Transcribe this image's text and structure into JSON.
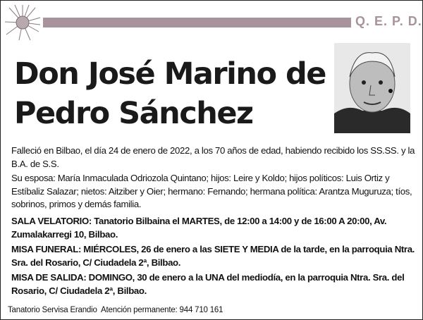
{
  "header": {
    "qepd": "Q. E. P. D.",
    "bar_color": "#a8939c",
    "logo_icon": "thistle-flower-icon"
  },
  "title": {
    "line1": "Don José Marino de",
    "line2": "Pedro Sánchez"
  },
  "photo": {
    "icon": "portrait-photo"
  },
  "paragraphs": [
    "Falleció en Bilbao, el día 24 de enero de 2022, a los 70 años de edad, habiendo recibido los SS.SS. y la B.A. de S.S.",
    "Su esposa: María Inmaculada Odriozola Quintano; hijos: Leire y Koldo; hijos políticos: Luis Ortiz y Estíbaliz Salazar; nietos: Aitziber y Oier; hermano: Fernando; hermana política: Arantza Muguruza; tíos, sobrinos, primos y demás familia.",
    "SALA VELATORIO: Tanatorio Bilbaina el MARTES, de 12:00 a 14:00 y de 16:00 A 20:00, Av. Zumalakarregi 10, Bilbao.",
    "MISA FUNERAL: MIÉRCOLES, 26 de enero a las SIETE Y MEDIA de la tarde, en la parroquia Ntra. Sra. del Rosario, C/ Ciudadela 2ª, Bilbao.",
    "MISA DE SALIDA: DOMINGO, 30 de enero a la UNA del mediodía, en la parroquia Ntra. Sra. del Rosario, C/ Ciudadela 2ª, Bilbao."
  ],
  "footer": "Tanatorio Servisa Erandio  Atención permanente: 944 710 161"
}
